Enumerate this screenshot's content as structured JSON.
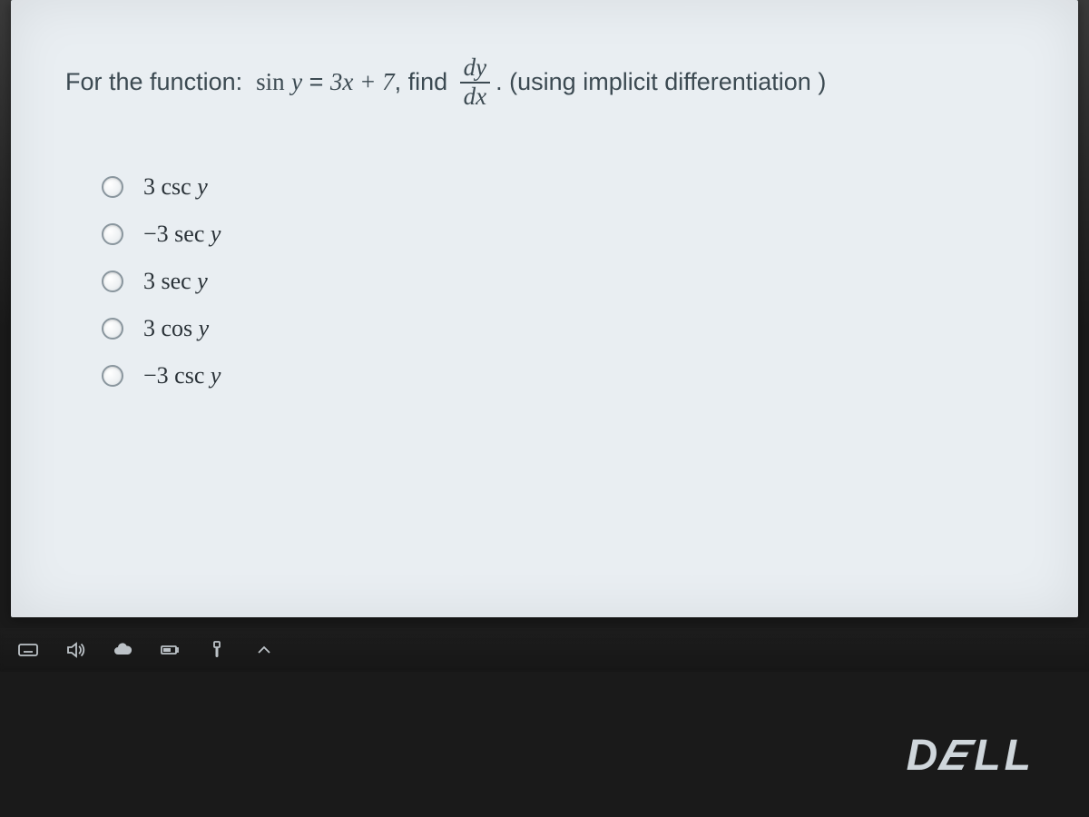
{
  "question": {
    "prefix": "For the function:  ",
    "expr_lhs_func": "sin",
    "expr_lhs_var": "y",
    "expr_eq": " = ",
    "expr_rhs": "3x + 7",
    "mid": ", find ",
    "frac_num_d": "d",
    "frac_num_var": "y",
    "frac_den_d": "d",
    "frac_den_var": "x",
    "suffix": ". (using implicit differentiation )",
    "text_color": "#3c4a52",
    "fontsize": 27
  },
  "options": [
    {
      "coef": "3",
      "func": "csc",
      "var": "y",
      "neg": false
    },
    {
      "coef": "3",
      "func": "sec",
      "var": "y",
      "neg": true
    },
    {
      "coef": "3",
      "func": "sec",
      "var": "y",
      "neg": false
    },
    {
      "coef": "3",
      "func": "cos",
      "var": "y",
      "neg": false
    },
    {
      "coef": "3",
      "func": "csc",
      "var": "y",
      "neg": true
    }
  ],
  "styling": {
    "panel_bg": "#e9eef2",
    "page_bg": "#1a1a1a",
    "option_text_color": "#2a3238",
    "radio_border": "#8a969e",
    "option_fontsize": 26,
    "option_spacing": 22
  },
  "taskbar": {
    "icons": [
      "keyboard-icon",
      "speaker-icon",
      "cloud-icon",
      "battery-icon",
      "usb-icon",
      "chevron-up-icon"
    ]
  },
  "brand": "DELL"
}
